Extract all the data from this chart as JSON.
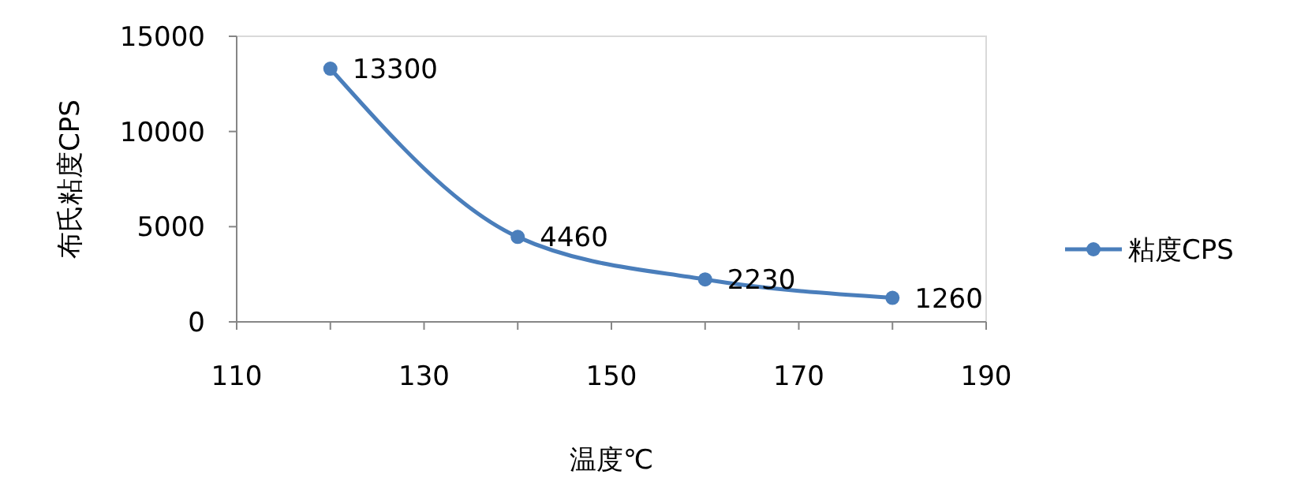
{
  "chart_data": {
    "type": "line",
    "xlabel": "温度℃",
    "ylabel": "布氏粘度CPS",
    "x": [
      120,
      140,
      160,
      180
    ],
    "series": [
      {
        "name": "粘度CPS",
        "color": "#4a7ebb",
        "values": [
          13300,
          4460,
          2230,
          1260
        ]
      }
    ],
    "xlim": [
      110,
      190
    ],
    "xticks": [
      110,
      {
        "value": 120,
        "label": null
      },
      130,
      {
        "value": 140,
        "label": null
      },
      150,
      {
        "value": 160,
        "label": null
      },
      170,
      {
        "value": 180,
        "label": null
      },
      190
    ],
    "ylim": [
      0,
      15000
    ],
    "yticks": [
      0,
      5000,
      10000,
      15000
    ],
    "grid": false,
    "legend": "right",
    "marker": "circle",
    "line_style": "solid",
    "data_labels": true
  }
}
